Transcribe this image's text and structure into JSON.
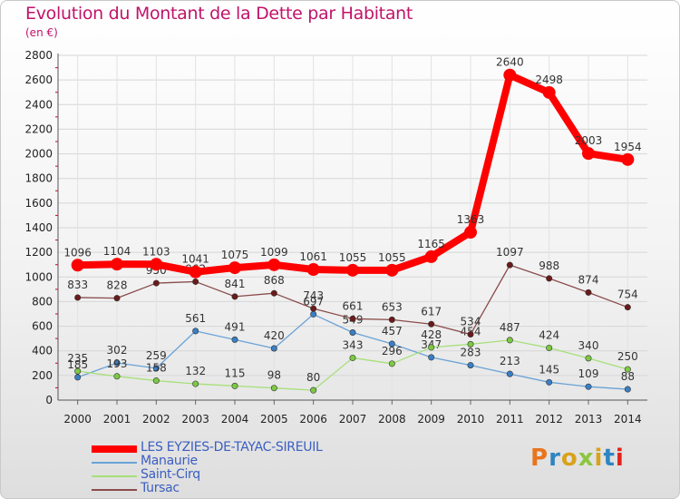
{
  "title": "Evolution du Montant de la Dette par Habitant",
  "subtitle": "(en €)",
  "logo_text": "Proxiti",
  "logo_colors": [
    "#e8741e",
    "#2e86c1",
    "#d9a21b",
    "#8cc63f",
    "#d9a21b",
    "#2e86c1",
    "#e2231a"
  ],
  "chart_data": {
    "type": "line",
    "x": [
      2000,
      2001,
      2002,
      2003,
      2004,
      2005,
      2006,
      2007,
      2008,
      2009,
      2010,
      2011,
      2012,
      2013,
      2014
    ],
    "ylim": [
      0,
      2800
    ],
    "yticks": [
      0,
      200,
      400,
      600,
      800,
      1000,
      1200,
      1400,
      1600,
      1800,
      2000,
      2200,
      2400,
      2600,
      2800
    ],
    "grid": true,
    "legend_position": "bottom-left",
    "series": [
      {
        "name": "LES EYZIES-DE-TAYAC-SIREUIL",
        "color": "#ff0000",
        "marker_color": "#ff0000",
        "emphasis": true,
        "values": [
          1096,
          1104,
          1103,
          1041,
          1075,
          1099,
          1061,
          1055,
          1055,
          1165,
          1363,
          2640,
          2498,
          2003,
          1954
        ],
        "labels": [
          "1096",
          "1104",
          "1103",
          "1041",
          "1075",
          "1099",
          "1061",
          "1055",
          "1055",
          "1165",
          "1363",
          "2640",
          "2498",
          "2003",
          "1954"
        ]
      },
      {
        "name": "Manaurie",
        "color": "#6aa2d6",
        "marker_color": "#3a7fc4",
        "values": [
          185,
          302,
          259,
          561,
          491,
          420,
          697,
          549,
          457,
          347,
          283,
          213,
          145,
          109,
          88
        ],
        "labels": [
          "185",
          "302",
          "259",
          "561",
          "491",
          "420",
          "697",
          "549",
          "457",
          "347",
          "283",
          "213",
          "145",
          "109",
          "88"
        ]
      },
      {
        "name": "Saint-Cirq",
        "color": "#a6e07a",
        "marker_color": "#7cc943",
        "values": [
          235,
          193,
          158,
          132,
          115,
          98,
          80,
          343,
          296,
          428,
          454,
          487,
          424,
          340,
          250
        ],
        "labels": [
          "235",
          "193",
          "158",
          "132",
          "115",
          "98",
          "80",
          "343",
          "296",
          "428",
          "454",
          "487",
          "424",
          "340",
          "250"
        ]
      },
      {
        "name": "Tursac",
        "color": "#8b4c4c",
        "marker_color": "#6b1a1a",
        "values": [
          833,
          828,
          950,
          962,
          841,
          868,
          743,
          661,
          653,
          617,
          534,
          1097,
          988,
          874,
          754
        ],
        "labels": [
          "833",
          "828",
          "950",
          "962",
          "841",
          "868",
          "743",
          "661",
          "653",
          "617",
          "534",
          "1097",
          "988",
          "874",
          "754"
        ]
      }
    ]
  }
}
